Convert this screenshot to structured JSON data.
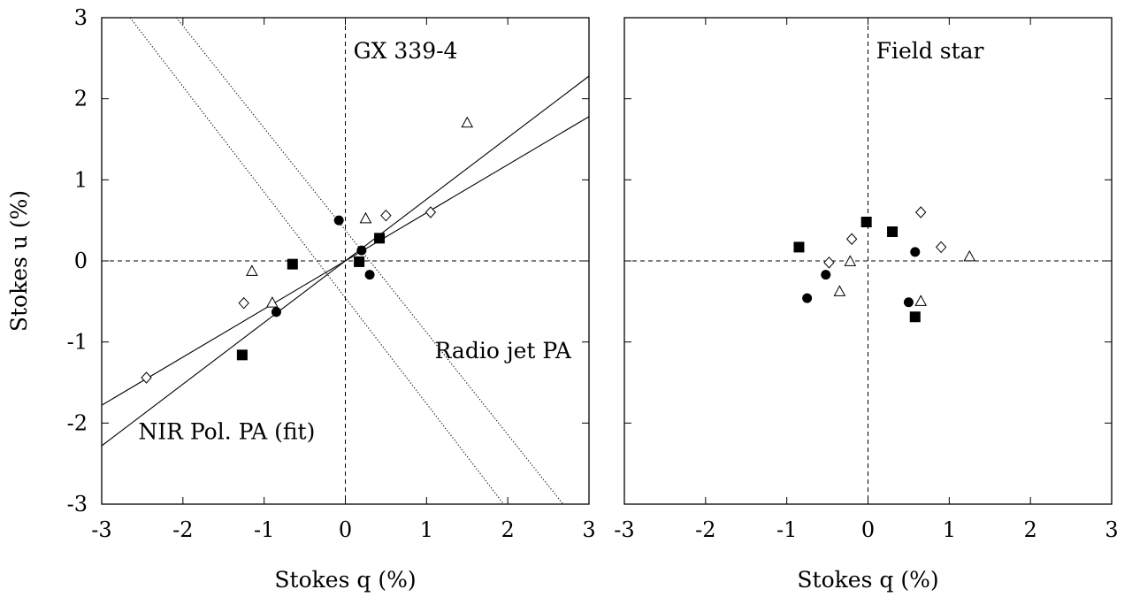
{
  "chart_data": [
    {
      "type": "scatter",
      "panel": "left",
      "title": "",
      "xlabel": "Stokes q (%)",
      "ylabel": "Stokes u (%)",
      "xlim": [
        -3,
        3
      ],
      "ylim": [
        -3,
        3
      ],
      "xticks": [
        "-3",
        "-2",
        "-1",
        "0",
        "1",
        "2",
        "3"
      ],
      "yticks": [
        "-3",
        "-2",
        "-1",
        "0",
        "1",
        "2",
        "3"
      ],
      "grid": false,
      "annotations": [
        {
          "text": "GX 339-4",
          "x": 0.1,
          "y": 2.5
        },
        {
          "text": "Radio jet PA",
          "x": 1.1,
          "y": -1.2
        },
        {
          "text": "NIR Pol. PA (fit)",
          "x": -2.55,
          "y": -2.2
        }
      ],
      "lines": [
        {
          "style": "solid",
          "points": [
            [
              -3,
              -1.78
            ],
            [
              3,
              1.78
            ]
          ]
        },
        {
          "style": "solid",
          "points": [
            [
              -3,
              -2.28
            ],
            [
              3,
              2.28
            ]
          ]
        },
        {
          "style": "dotted",
          "points": [
            [
              -2.65,
              3.0
            ],
            [
              1.95,
              -3.0
            ]
          ]
        },
        {
          "style": "dotted",
          "points": [
            [
              -2.08,
              3.0
            ],
            [
              2.68,
              -3.0
            ]
          ]
        }
      ],
      "series": [
        {
          "marker": "filled-circle",
          "x": [
            -0.08,
            0.2,
            0.3,
            -0.85
          ],
          "y": [
            0.5,
            0.13,
            -0.17,
            -0.63
          ]
        },
        {
          "marker": "filled-square",
          "x": [
            -0.65,
            0.17,
            0.42,
            -1.27
          ],
          "y": [
            -0.04,
            -0.01,
            0.28,
            -1.16
          ]
        },
        {
          "marker": "open-triangle",
          "x": [
            1.5,
            0.25,
            -1.15,
            -0.9
          ],
          "y": [
            1.7,
            0.52,
            -0.13,
            -0.52
          ]
        },
        {
          "marker": "open-diamond",
          "x": [
            0.5,
            1.05,
            -1.25,
            -2.45
          ],
          "y": [
            0.56,
            0.6,
            -0.52,
            -1.44
          ]
        }
      ]
    },
    {
      "type": "scatter",
      "panel": "right",
      "title": "",
      "xlabel": "Stokes q (%)",
      "ylabel": "",
      "xlim": [
        -3,
        3
      ],
      "ylim": [
        -3,
        3
      ],
      "xticks": [
        "-3",
        "-2",
        "-1",
        "0",
        "1",
        "2",
        "3"
      ],
      "grid": false,
      "annotations": [
        {
          "text": "Field star",
          "x": 0.1,
          "y": 2.5
        }
      ],
      "series": [
        {
          "marker": "filled-circle",
          "x": [
            -0.52,
            -0.75,
            0.58,
            0.5
          ],
          "y": [
            -0.17,
            -0.46,
            0.11,
            -0.51
          ]
        },
        {
          "marker": "filled-square",
          "x": [
            -0.85,
            -0.02,
            0.3,
            0.58
          ],
          "y": [
            0.17,
            0.48,
            0.36,
            -0.69
          ]
        },
        {
          "marker": "open-triangle",
          "x": [
            -0.22,
            -0.35,
            0.65,
            1.25
          ],
          "y": [
            -0.01,
            -0.38,
            -0.5,
            0.05
          ]
        },
        {
          "marker": "open-diamond",
          "x": [
            -0.48,
            -0.2,
            0.65,
            0.9
          ],
          "y": [
            -0.02,
            0.27,
            0.6,
            0.17
          ]
        }
      ]
    }
  ]
}
